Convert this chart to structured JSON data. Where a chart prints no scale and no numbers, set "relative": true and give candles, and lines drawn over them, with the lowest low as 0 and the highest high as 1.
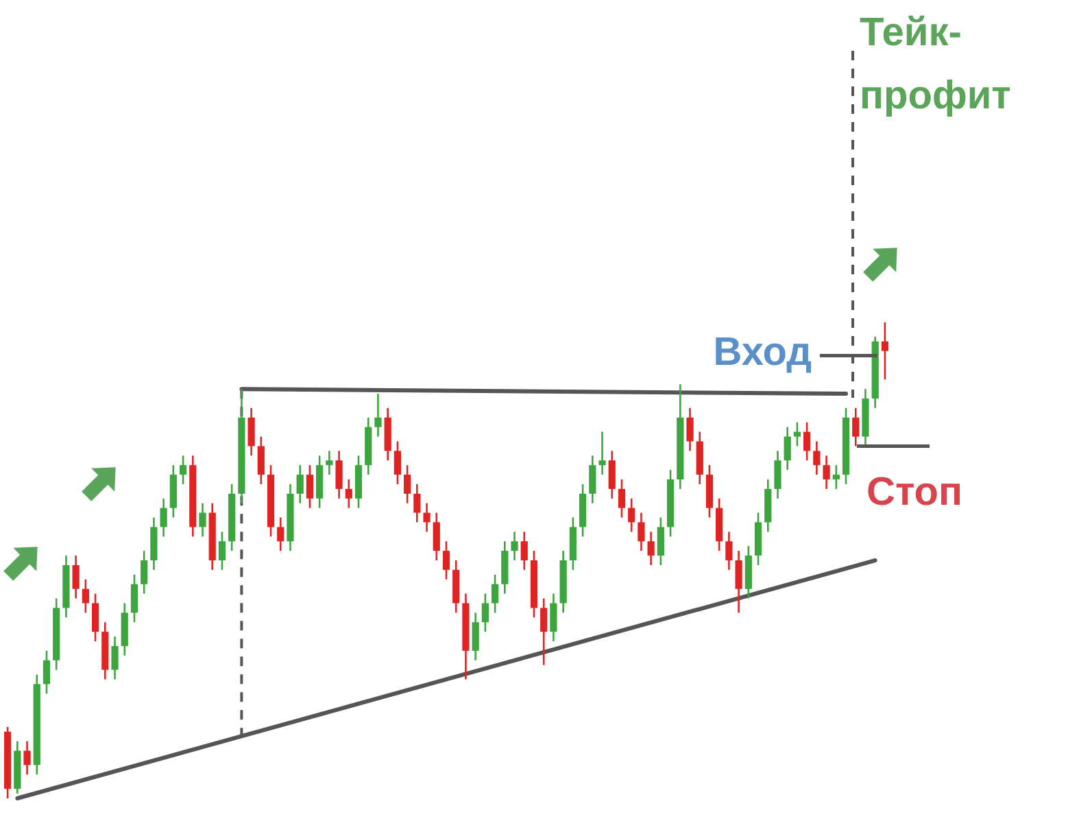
{
  "chart_data": {
    "type": "candlestick",
    "relative": true,
    "categories": [
      null,
      null,
      null,
      null,
      null,
      null,
      null,
      null,
      null,
      null,
      null,
      null,
      null,
      null,
      null,
      null,
      null,
      null,
      null,
      null,
      null,
      null,
      null,
      null,
      null,
      null,
      null,
      null,
      null,
      null,
      null,
      null,
      null,
      null,
      null,
      null,
      null,
      null,
      null,
      null,
      null,
      null,
      null,
      null,
      null,
      null,
      null,
      null,
      null,
      null,
      null,
      null,
      null,
      null,
      null,
      null,
      null,
      null,
      null,
      null,
      null,
      null,
      null,
      null,
      null,
      null,
      null,
      null,
      null,
      null,
      null,
      null,
      null,
      null,
      null,
      null,
      null,
      null,
      null,
      null,
      null,
      null,
      null,
      null,
      null,
      null,
      null,
      null,
      null,
      null,
      null
    ],
    "ohlc": [
      [
        0.14,
        0.15,
        0,
        0.02
      ],
      [
        0.02,
        0.12,
        0.01,
        0.1
      ],
      [
        0.1,
        0.12,
        0.05,
        0.07
      ],
      [
        0.07,
        0.26,
        0.05,
        0.24
      ],
      [
        0.24,
        0.31,
        0.22,
        0.29
      ],
      [
        0.29,
        0.42,
        0.27,
        0.4
      ],
      [
        0.4,
        0.51,
        0.38,
        0.49
      ],
      [
        0.49,
        0.51,
        0.42,
        0.44
      ],
      [
        0.44,
        0.46,
        0.39,
        0.41
      ],
      [
        0.41,
        0.43,
        0.33,
        0.35
      ],
      [
        0.35,
        0.37,
        0.25,
        0.27
      ],
      [
        0.27,
        0.34,
        0.25,
        0.32
      ],
      [
        0.32,
        0.41,
        0.3,
        0.39
      ],
      [
        0.39,
        0.47,
        0.37,
        0.45
      ],
      [
        0.45,
        0.52,
        0.43,
        0.5
      ],
      [
        0.5,
        0.59,
        0.48,
        0.57
      ],
      [
        0.57,
        0.63,
        0.55,
        0.61
      ],
      [
        0.61,
        0.7,
        0.59,
        0.68
      ],
      [
        0.68,
        0.72,
        0.66,
        0.7
      ],
      [
        0.7,
        0.72,
        0.55,
        0.57
      ],
      [
        0.57,
        0.62,
        0.55,
        0.6
      ],
      [
        0.6,
        0.62,
        0.48,
        0.5
      ],
      [
        0.5,
        0.56,
        0.48,
        0.54
      ],
      [
        0.54,
        0.66,
        0.52,
        0.64
      ],
      [
        0.64,
        0.86,
        0.62,
        0.8
      ],
      [
        0.8,
        0.82,
        0.72,
        0.74
      ],
      [
        0.74,
        0.76,
        0.66,
        0.68
      ],
      [
        0.68,
        0.7,
        0.55,
        0.57
      ],
      [
        0.57,
        0.59,
        0.52,
        0.54
      ],
      [
        0.54,
        0.66,
        0.52,
        0.64
      ],
      [
        0.64,
        0.7,
        0.62,
        0.68
      ],
      [
        0.68,
        0.7,
        0.61,
        0.63
      ],
      [
        0.63,
        0.72,
        0.61,
        0.7
      ],
      [
        0.7,
        0.73,
        0.68,
        0.71
      ],
      [
        0.71,
        0.73,
        0.63,
        0.65
      ],
      [
        0.65,
        0.67,
        0.61,
        0.63
      ],
      [
        0.63,
        0.72,
        0.61,
        0.7
      ],
      [
        0.7,
        0.8,
        0.68,
        0.78
      ],
      [
        0.78,
        0.85,
        0.76,
        0.8
      ],
      [
        0.8,
        0.82,
        0.71,
        0.73
      ],
      [
        0.73,
        0.75,
        0.66,
        0.68
      ],
      [
        0.68,
        0.7,
        0.62,
        0.64
      ],
      [
        0.64,
        0.66,
        0.58,
        0.6
      ],
      [
        0.6,
        0.62,
        0.56,
        0.58
      ],
      [
        0.58,
        0.6,
        0.5,
        0.52
      ],
      [
        0.52,
        0.54,
        0.46,
        0.48
      ],
      [
        0.48,
        0.5,
        0.39,
        0.41
      ],
      [
        0.41,
        0.43,
        0.25,
        0.31
      ],
      [
        0.31,
        0.39,
        0.29,
        0.37
      ],
      [
        0.37,
        0.43,
        0.35,
        0.41
      ],
      [
        0.41,
        0.47,
        0.39,
        0.45
      ],
      [
        0.45,
        0.54,
        0.43,
        0.52
      ],
      [
        0.52,
        0.56,
        0.5,
        0.54
      ],
      [
        0.54,
        0.56,
        0.48,
        0.5
      ],
      [
        0.5,
        0.52,
        0.38,
        0.4
      ],
      [
        0.4,
        0.42,
        0.28,
        0.35
      ],
      [
        0.35,
        0.43,
        0.33,
        0.41
      ],
      [
        0.41,
        0.52,
        0.39,
        0.5
      ],
      [
        0.5,
        0.59,
        0.48,
        0.57
      ],
      [
        0.57,
        0.66,
        0.55,
        0.64
      ],
      [
        0.64,
        0.72,
        0.62,
        0.7
      ],
      [
        0.7,
        0.77,
        0.68,
        0.71
      ],
      [
        0.71,
        0.73,
        0.63,
        0.65
      ],
      [
        0.65,
        0.67,
        0.59,
        0.61
      ],
      [
        0.61,
        0.63,
        0.56,
        0.58
      ],
      [
        0.58,
        0.6,
        0.52,
        0.54
      ],
      [
        0.54,
        0.56,
        0.49,
        0.51
      ],
      [
        0.51,
        0.59,
        0.49,
        0.57
      ],
      [
        0.57,
        0.69,
        0.55,
        0.67
      ],
      [
        0.67,
        0.87,
        0.65,
        0.8
      ],
      [
        0.8,
        0.82,
        0.73,
        0.75
      ],
      [
        0.75,
        0.77,
        0.66,
        0.68
      ],
      [
        0.68,
        0.7,
        0.59,
        0.61
      ],
      [
        0.61,
        0.63,
        0.52,
        0.54
      ],
      [
        0.54,
        0.56,
        0.48,
        0.5
      ],
      [
        0.5,
        0.52,
        0.39,
        0.44
      ],
      [
        0.44,
        0.53,
        0.42,
        0.51
      ],
      [
        0.51,
        0.6,
        0.49,
        0.58
      ],
      [
        0.58,
        0.67,
        0.56,
        0.65
      ],
      [
        0.65,
        0.73,
        0.63,
        0.71
      ],
      [
        0.71,
        0.78,
        0.69,
        0.76
      ],
      [
        0.76,
        0.79,
        0.74,
        0.77
      ],
      [
        0.77,
        0.79,
        0.71,
        0.73
      ],
      [
        0.73,
        0.75,
        0.68,
        0.7
      ],
      [
        0.7,
        0.72,
        0.65,
        0.67
      ],
      [
        0.67,
        0.7,
        0.65,
        0.68
      ],
      [
        0.68,
        0.82,
        0.66,
        0.8
      ],
      [
        0.8,
        0.82,
        0.74,
        0.76
      ],
      [
        0.76,
        0.86,
        0.74,
        0.84
      ],
      [
        0.84,
        0.97,
        0.82,
        0.96
      ],
      [
        0.96,
        1.0,
        0.88,
        0.94
      ]
    ],
    "series": [
      {
        "type": "line",
        "color": "#555555",
        "values": [
          null,
          null,
          null,
          null,
          null,
          null,
          null,
          null,
          null,
          null,
          null,
          null,
          null,
          null,
          null,
          null,
          null,
          null,
          null,
          null,
          null,
          null,
          null,
          null,
          0.86,
          null,
          null,
          null,
          null,
          null,
          null,
          null,
          null,
          null,
          null,
          null,
          null,
          null,
          null,
          null,
          null,
          null,
          null,
          null,
          null,
          null,
          null,
          null,
          null,
          null,
          null,
          null,
          null,
          null,
          null,
          null,
          null,
          null,
          null,
          null,
          null,
          null,
          null,
          null,
          null,
          null,
          null,
          null,
          null,
          null,
          null,
          null,
          null,
          null,
          null,
          null,
          null,
          null,
          null,
          null,
          null,
          null,
          null,
          null,
          null,
          null,
          0.85,
          null,
          null,
          null,
          null
        ]
      },
      {
        "type": "line",
        "color": "#555555",
        "values": [
          null,
          0,
          null,
          null,
          null,
          null,
          null,
          null,
          null,
          null,
          null,
          null,
          null,
          null,
          null,
          null,
          null,
          null,
          null,
          null,
          null,
          null,
          null,
          null,
          null,
          null,
          null,
          null,
          null,
          null,
          null,
          null,
          null,
          null,
          null,
          null,
          null,
          null,
          null,
          null,
          null,
          null,
          null,
          null,
          null,
          null,
          null,
          null,
          null,
          null,
          null,
          null,
          null,
          null,
          null,
          null,
          null,
          null,
          null,
          null,
          null,
          null,
          null,
          null,
          null,
          null,
          null,
          null,
          null,
          null,
          null,
          null,
          null,
          null,
          null,
          null,
          null,
          null,
          null,
          null,
          null,
          null,
          null,
          null,
          null,
          null,
          null,
          null,
          null,
          0.5,
          null
        ]
      }
    ],
    "ref_lines": [
      {
        "axis": "y",
        "value": 0.93,
        "label": "Вход",
        "color": "#555555"
      },
      {
        "axis": "y",
        "value": 0.74,
        "label": "Стоп",
        "color": "#555555"
      }
    ],
    "annotations": [
      "Тейк-профит"
    ]
  }
}
